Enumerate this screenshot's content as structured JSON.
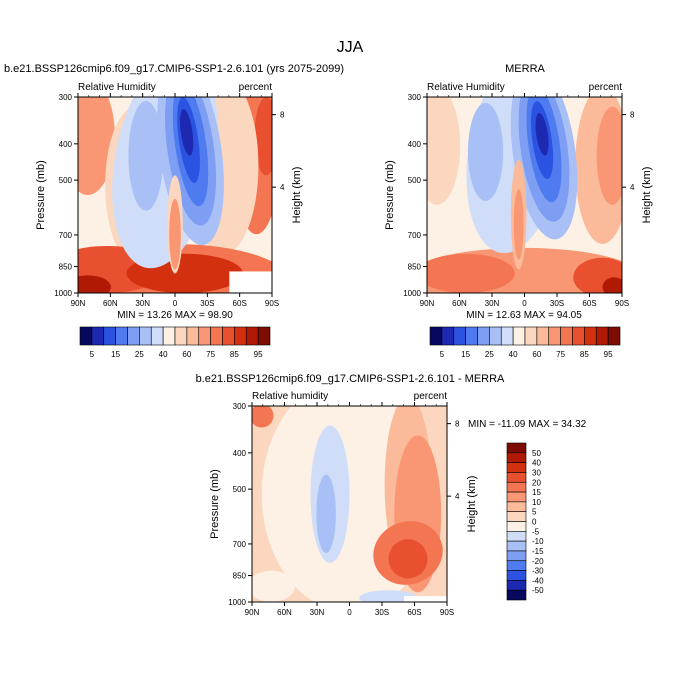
{
  "page": {
    "title": "JJA"
  },
  "chart_data": [
    {
      "type": "heatmap",
      "title": "b.e21.BSSP126cmip6.f09_g17.CMIP6-SSP1-2.6.101 (yrs 2075-2099)",
      "left_label": "Relative Humidity",
      "right_label": "percent",
      "xlabel": "",
      "ylabel": "Pressure (mb)",
      "y2label": "Height (km)",
      "x_ticks": [
        "90N",
        "60N",
        "30N",
        "0",
        "30S",
        "60S",
        "90S"
      ],
      "y_ticks": [
        "300",
        "400",
        "500",
        "700",
        "850",
        "1000"
      ],
      "y2_ticks": [
        "8",
        "4"
      ],
      "stats": "MIN = 13.26 MAX = 98.90",
      "colorbar": {
        "orientation": "horizontal",
        "labels": [
          "5",
          "15",
          "25",
          "40",
          "60",
          "75",
          "85",
          "95"
        ],
        "colors": [
          "#08085e",
          "#1c29b0",
          "#2b52e0",
          "#4f7bf0",
          "#7d9ef2",
          "#a8c0f5",
          "#d0ddf8",
          "#fdf1e6",
          "#fcd7bf",
          "#fbba99",
          "#f99774",
          "#f47552",
          "#e8502f",
          "#d3300f",
          "#b01a05",
          "#7d0d02"
        ]
      }
    },
    {
      "type": "heatmap",
      "title": "MERRA",
      "left_label": "Relative Humidity",
      "right_label": "percent",
      "xlabel": "",
      "ylabel": "Pressure (mb)",
      "y2label": "Height (km)",
      "x_ticks": [
        "90N",
        "60N",
        "30N",
        "0",
        "30S",
        "60S",
        "90S"
      ],
      "y_ticks": [
        "300",
        "400",
        "500",
        "700",
        "850",
        "1000"
      ],
      "y2_ticks": [
        "8",
        "4"
      ],
      "stats": "MIN = 12.63 MAX = 94.05",
      "colorbar": {
        "orientation": "horizontal",
        "labels": [
          "5",
          "15",
          "25",
          "40",
          "60",
          "75",
          "85",
          "95"
        ],
        "colors": [
          "#08085e",
          "#1c29b0",
          "#2b52e0",
          "#4f7bf0",
          "#7d9ef2",
          "#a8c0f5",
          "#d0ddf8",
          "#fdf1e6",
          "#fcd7bf",
          "#fbba99",
          "#f99774",
          "#f47552",
          "#e8502f",
          "#d3300f",
          "#b01a05",
          "#7d0d02"
        ]
      }
    },
    {
      "type": "heatmap",
      "title": "b.e21.BSSP126cmip6.f09_g17.CMIP6-SSP1-2.6.101 - MERRA",
      "left_label": "Relative humidity",
      "right_label": "percent",
      "xlabel": "",
      "ylabel": "Pressure (mb)",
      "y2label": "Height (km)",
      "x_ticks": [
        "90N",
        "60N",
        "30N",
        "0",
        "30S",
        "60S",
        "90S"
      ],
      "y_ticks": [
        "300",
        "400",
        "500",
        "700",
        "850",
        "1000"
      ],
      "y2_ticks": [
        "8",
        "4"
      ],
      "stats": "MIN = -11.09 MAX = 34.32",
      "colorbar": {
        "orientation": "vertical",
        "labels": [
          "50",
          "40",
          "30",
          "20",
          "15",
          "10",
          "5",
          "0",
          "-5",
          "-10",
          "-15",
          "-20",
          "-30",
          "-40",
          "-50"
        ],
        "colors": [
          "#7d0d02",
          "#b01a05",
          "#d3300f",
          "#e8502f",
          "#f47552",
          "#f99774",
          "#fbba99",
          "#fcd7bf",
          "#fdf1e6",
          "#d0ddf8",
          "#a8c0f5",
          "#7d9ef2",
          "#4f7bf0",
          "#2b52e0",
          "#1c29b0",
          "#08085e"
        ]
      }
    }
  ]
}
